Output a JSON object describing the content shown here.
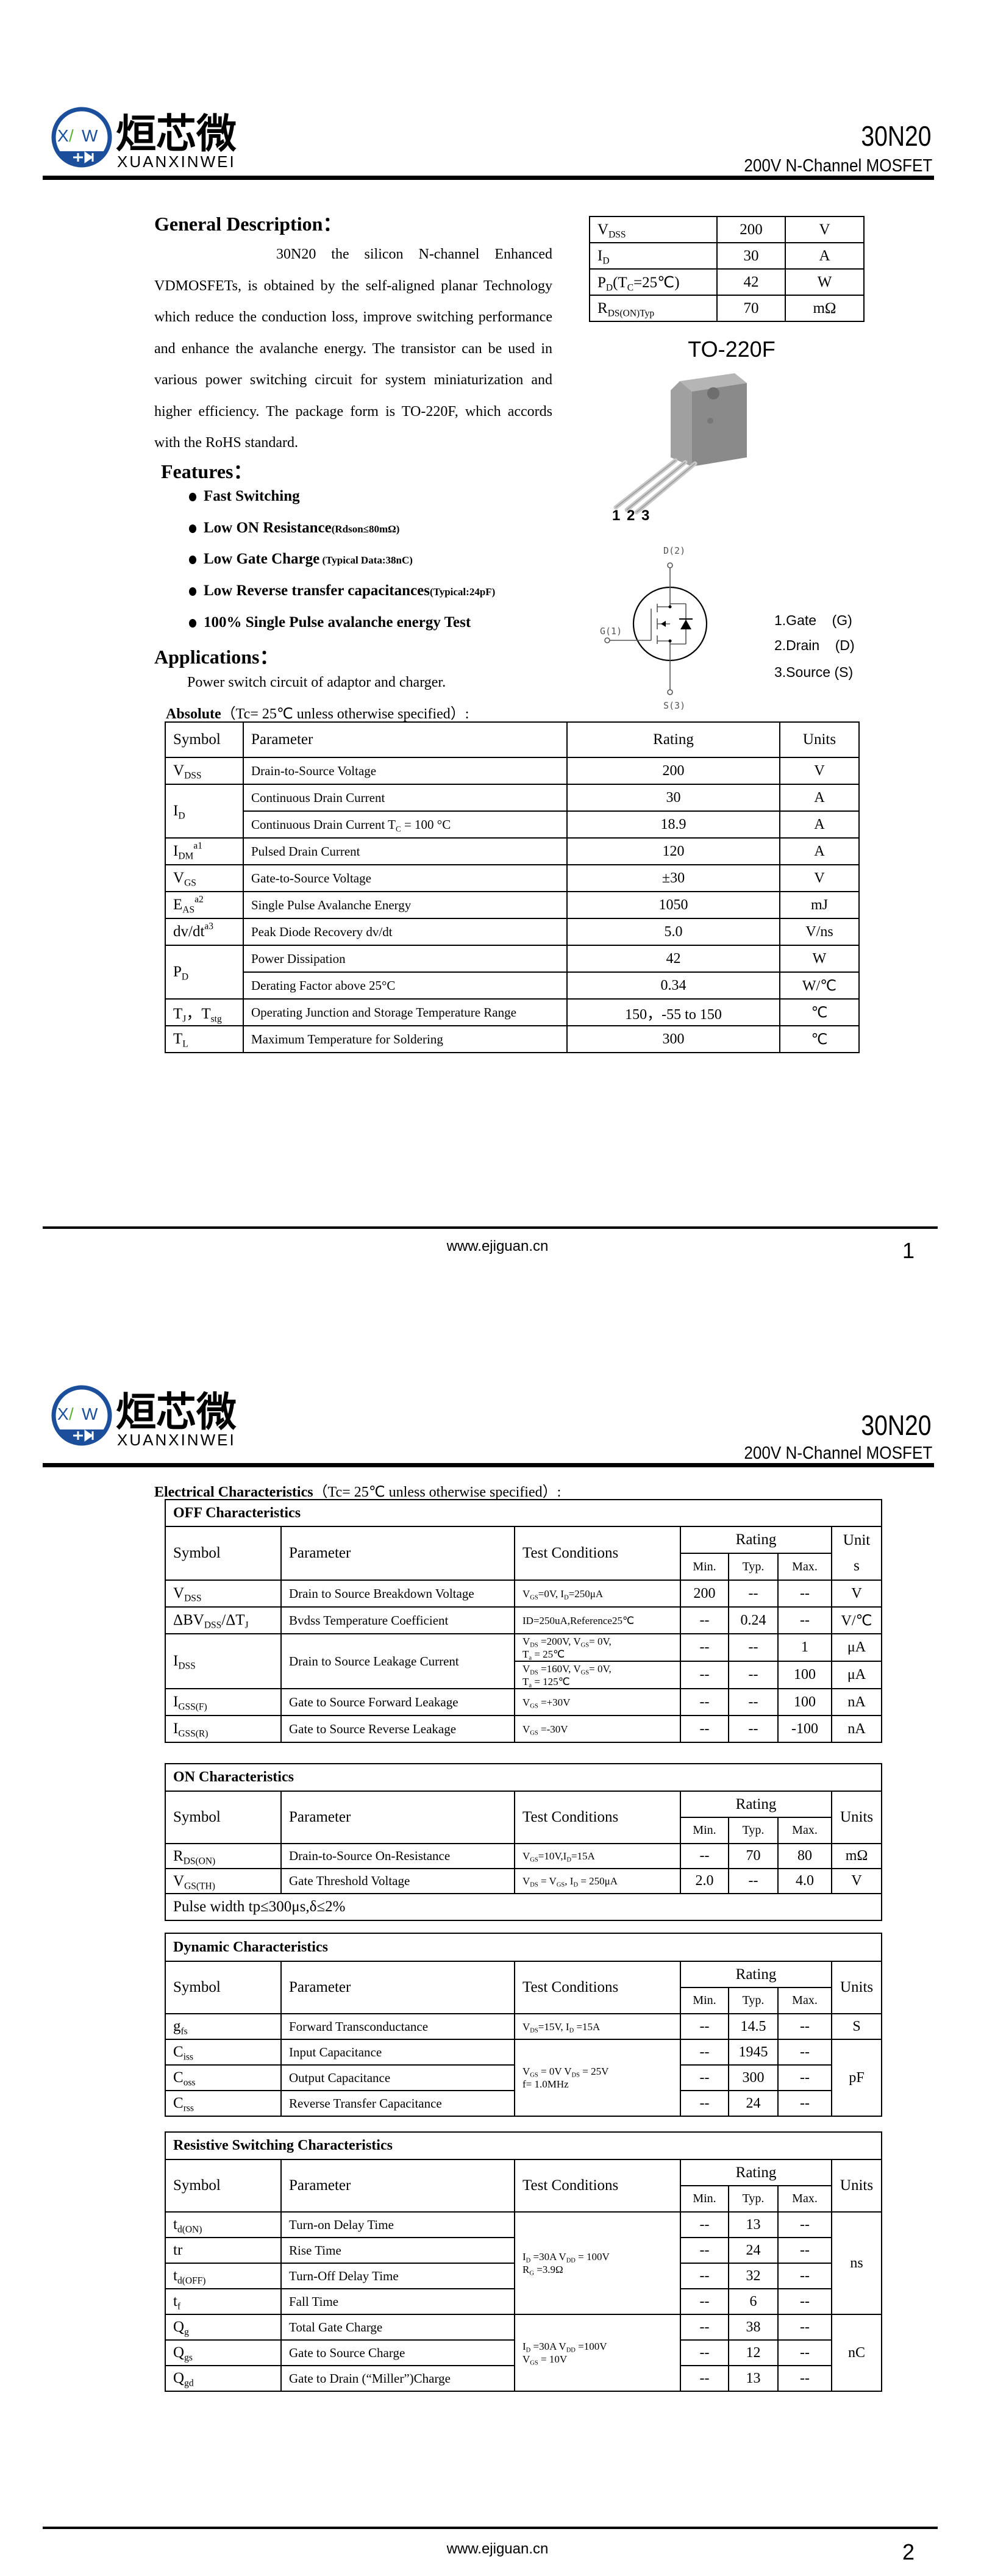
{
  "brand": {
    "logo_letters": "XW",
    "logo_cn": "烜芯微",
    "logo_en": "XUANXINWEI",
    "blue": "#1b4f9c",
    "green": "#5ab332"
  },
  "header": {
    "part": "30N20",
    "subtitle": "200V N-Channel MOSFET"
  },
  "footer": {
    "url": "www.ejiguan.cn",
    "page1": "1",
    "page2": "2"
  },
  "general": {
    "heading": "General Description：",
    "text": "30N20 the silicon N-channel Enhanced VDMOSFETs, is obtained by the self-aligned planar Technology which reduce the conduction loss, improve switching performance and enhance the avalanche energy. The transistor can be used in various power switching circuit for system miniaturization and higher efficiency. The package form is TO-220F, which accords with the RoHS standard."
  },
  "spec_table": [
    {
      "sym": "V_{DSS}",
      "val": "200",
      "unit": "V"
    },
    {
      "sym": "I_{D}",
      "val": "30",
      "unit": "A"
    },
    {
      "sym": "P_{D}(T_{C}=25℃)",
      "val": "42",
      "unit": "W"
    },
    {
      "sym": "R_{DS(ON)Typ}",
      "val": "70",
      "unit": "mΩ"
    }
  ],
  "package": {
    "name": "TO-220F",
    "pins": "1 2 3",
    "color": "#8a8a8a"
  },
  "schematic": {
    "drain": "D(2)",
    "gate": "G(1)",
    "source": "S(3)"
  },
  "pin_legend": [
    "1.Gate    (G)",
    "2.Drain    (D)",
    "3.Source (S)"
  ],
  "features": {
    "heading": "Features：",
    "items": [
      {
        "text": "Fast Switching",
        "note": ""
      },
      {
        "text": "Low ON Resistance",
        "note": "(Rdson≤80mΩ)"
      },
      {
        "text": "Low Gate Charge",
        "note": "    (Typical Data:38nC)"
      },
      {
        "text": "Low Reverse transfer capacitances",
        "note": "(Typical:24pF)"
      },
      {
        "text": "100% Single Pulse avalanche energy Test",
        "note": ""
      }
    ]
  },
  "applications": {
    "heading": "Applications：",
    "text": "Power switch circuit of adaptor and charger."
  },
  "absolute": {
    "caption_bold": "Absolute",
    "caption": "（Tc= 25℃  unless otherwise specified）:",
    "headers": [
      "Symbol",
      "Parameter",
      "Rating",
      "Units"
    ],
    "rows": [
      {
        "sym": "V_{DSS}",
        "param": "Drain-to-Source Voltage",
        "rating": "200",
        "unit": "V"
      },
      {
        "sym": "I_{D}",
        "symSpan": 2,
        "param": "Continuous Drain Current",
        "rating": "30",
        "unit": "A"
      },
      {
        "param": "Continuous Drain Current T_{C} = 100 °C",
        "rating": "18.9",
        "unit": "A"
      },
      {
        "sym": "I_{DM}^{a1}",
        "param": "Pulsed Drain Current",
        "rating": "120",
        "unit": "A"
      },
      {
        "sym": "V_{GS}",
        "param": "Gate-to-Source Voltage",
        "rating": "±30",
        "unit": "V"
      },
      {
        "sym": "E_{AS}^{a2}",
        "param": "Single Pulse Avalanche Energy",
        "rating": "1050",
        "unit": "mJ"
      },
      {
        "sym": "dv/dt^{a3}",
        "param": "Peak Diode Recovery dv/dt",
        "rating": "5.0",
        "unit": "V/ns"
      },
      {
        "sym": "P_{D}",
        "symSpan": 2,
        "param": "Power Dissipation",
        "rating": "42",
        "unit": "W"
      },
      {
        "param": "Derating Factor above 25°C",
        "rating": "0.34",
        "unit": "W/℃"
      },
      {
        "sym": "T_{J}，T_{stg}",
        "param": "Operating Junction and Storage Temperature Range",
        "rating": "150，-55 to 150",
        "unit": "℃"
      },
      {
        "sym": "T_{L}",
        "param": "Maximum Temperature for Soldering",
        "rating": "300",
        "unit": "℃"
      }
    ]
  },
  "electrical": {
    "caption_bold": "Electrical Characteristics",
    "caption": "（Tc= 25℃  unless otherwise specified）:",
    "tables": [
      {
        "title": "OFF Characteristics",
        "headers": {
          "symbol": "Symbol",
          "parameter": "Parameter",
          "conditions": "Test Conditions",
          "rating": "Rating",
          "min": "Min.",
          "typ": "Typ.",
          "max": "Max.",
          "unit": "Unit\ns"
        },
        "rows": [
          {
            "sym": "V_{DSS}",
            "param": "Drain to Source Breakdown Voltage",
            "cond": "V_{GS}=0V, I_{D}=250μA",
            "min": "200",
            "typ": "--",
            "max": "--",
            "unit": "V"
          },
          {
            "sym": "ΔBV_{DSS}/ΔT_{J}",
            "param": "Bvdss Temperature Coefficient",
            "cond": "ID=250uA,Reference25℃",
            "min": "--",
            "typ": "0.24",
            "max": "--",
            "unit": "V/℃"
          },
          {
            "sym": "I_{DSS}",
            "param": "Drain to Source Leakage Current",
            "spans": {
              "sym": 2,
              "param": 2
            },
            "cond": "V_{DS} =200V, V_{GS}= 0V,\nT_{a} = 25℃",
            "min": "--",
            "typ": "--",
            "max": "1",
            "unit": "μA"
          },
          {
            "cond": "V_{DS} =160V, V_{GS}= 0V,\nT_{a} = 125℃",
            "min": "--",
            "typ": "--",
            "max": "100",
            "unit": "μA"
          },
          {
            "sym": "I_{GSS(F)}",
            "param": "Gate to Source Forward Leakage",
            "cond": "V_{GS} =+30V",
            "min": "--",
            "typ": "--",
            "max": "100",
            "unit": "nA"
          },
          {
            "sym": "I_{GSS(R)}",
            "param": "Gate to Source Reverse Leakage",
            "cond": "V_{GS} =-30V",
            "min": "--",
            "typ": "--",
            "max": "-100",
            "unit": "nA"
          }
        ]
      },
      {
        "title": "ON Characteristics",
        "headers": {
          "symbol": "Symbol",
          "parameter": "Parameter",
          "conditions": "Test Conditions",
          "rating": "Rating",
          "min": "Min.",
          "typ": "Typ.",
          "max": "Max.",
          "unit": "Units"
        },
        "rows": [
          {
            "sym": "R_{DS(ON)}",
            "param": "Drain-to-Source On-Resistance",
            "cond": "V_{GS}=10V,I_{D}=15A",
            "min": "--",
            "typ": "70",
            "max": "80",
            "unit": "mΩ"
          },
          {
            "sym": "V_{GS(TH)}",
            "param": "Gate Threshold Voltage",
            "cond": "V_{DS} = V_{GS}, I_{D} = 250μA",
            "min": "2.0",
            "typ": "--",
            "max": "4.0",
            "unit": "V"
          }
        ],
        "note": "Pulse width tp≤300μs,δ≤2%"
      },
      {
        "title": "Dynamic Characteristics",
        "headers": {
          "symbol": "Symbol",
          "parameter": "Parameter",
          "conditions": "Test Conditions",
          "rating": "Rating",
          "min": "Min.",
          "typ": "Typ.",
          "max": "Max.",
          "unit": "Units"
        },
        "rows": [
          {
            "sym": "g_{fs}",
            "param": "Forward Transconductance",
            "cond": "V_{DS}=15V, I_{D} =15A",
            "min": "--",
            "typ": "14.5",
            "max": "--",
            "unit": "S"
          },
          {
            "sym": "C_{iss}",
            "param": "Input Capacitance",
            "cond": "V_{GS} = 0V V_{DS} = 25V\nf= 1.0MHz",
            "spans": {
              "cond": 3,
              "unit": 3
            },
            "min": "--",
            "typ": "1945",
            "max": "--",
            "unit": "pF"
          },
          {
            "sym": "C_{oss}",
            "param": "Output Capacitance",
            "min": "--",
            "typ": "300",
            "max": "--"
          },
          {
            "sym": "C_{rss}",
            "param": "Reverse Transfer Capacitance",
            "min": "--",
            "typ": "24",
            "max": "--"
          }
        ]
      },
      {
        "title": "Resistive Switching Characteristics",
        "headers": {
          "symbol": "Symbol",
          "parameter": "Parameter",
          "conditions": "Test Conditions",
          "rating": "Rating",
          "min": "Min.",
          "typ": "Typ.",
          "max": "Max.",
          "unit": "Units"
        },
        "rows": [
          {
            "sym": "t_{d(ON)}",
            "param": "Turn-on Delay Time",
            "cond": "I_{D} =30A    V_{DD} = 100V\nR_{G} =3.9Ω",
            "spans": {
              "cond": 4,
              "unit": 4
            },
            "min": "--",
            "typ": "13",
            "max": "--",
            "unit": "ns"
          },
          {
            "sym": "tr",
            "param": "Rise Time",
            "min": "--",
            "typ": "24",
            "max": "--"
          },
          {
            "sym": "t_{d(OFF)}",
            "param": "Turn-Off Delay Time",
            "min": "--",
            "typ": "32",
            "max": "--"
          },
          {
            "sym": "t_{f}",
            "param": "Fall Time",
            "min": "--",
            "typ": "6",
            "max": "--"
          },
          {
            "sym": "Q_{g}",
            "param": "Total Gate Charge",
            "cond": "I_{D} =30A    V_{DD} =100V\nV_{GS} = 10V",
            "spans": {
              "cond": 3,
              "unit": 3
            },
            "min": "--",
            "typ": "38",
            "max": "--",
            "unit": "nC"
          },
          {
            "sym": "Q_{gs}",
            "param": "Gate to Source Charge",
            "min": "--",
            "typ": "12",
            "max": "--"
          },
          {
            "sym": "Q_{gd}",
            "param": "Gate to Drain (“Miller”)Charge",
            "min": "--",
            "typ": "13",
            "max": "--"
          }
        ]
      }
    ]
  }
}
